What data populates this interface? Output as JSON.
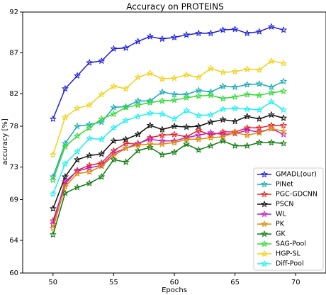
{
  "chart_data": {
    "type": "line",
    "title": "Accuracy on PROTEINS",
    "xlabel": "Epochs",
    "ylabel": "accuracy [%]",
    "xlim": [
      47.5,
      72.5
    ],
    "ylim": [
      60,
      92
    ],
    "xticks": [
      50,
      55,
      60,
      65,
      70
    ],
    "yticks": [
      60,
      64,
      69,
      73,
      78,
      82,
      87,
      92
    ],
    "grid": false,
    "legend_position": "lower-right",
    "x": [
      50,
      51,
      52,
      53,
      54,
      55,
      56,
      57,
      58,
      59,
      60,
      61,
      62,
      63,
      64,
      65,
      66,
      67,
      68,
      69
    ],
    "series": [
      {
        "name": "GMADL(our)",
        "color": "#1f1fd6",
        "marker": "star",
        "values": [
          78.9,
          82.6,
          84.2,
          85.8,
          86.0,
          87.5,
          87.6,
          88.4,
          89.0,
          88.7,
          88.9,
          89.2,
          89.4,
          89.4,
          89.8,
          89.9,
          89.4,
          89.6,
          90.2,
          89.8
        ]
      },
      {
        "name": "PiNet",
        "color": "#17a9b5",
        "marker": "star",
        "values": [
          71.8,
          75.9,
          78.0,
          78.2,
          78.5,
          80.3,
          80.4,
          81.1,
          81.1,
          82.2,
          81.9,
          81.9,
          82.4,
          82.2,
          82.9,
          82.8,
          83.1,
          83.2,
          82.8,
          83.5
        ]
      },
      {
        "name": "PGC-GDCNN",
        "color": "#e82121",
        "marker": "star",
        "values": [
          66.4,
          70.9,
          72.6,
          73.2,
          73.5,
          75.0,
          75.9,
          75.8,
          76.6,
          76.9,
          77.0,
          76.7,
          77.5,
          76.9,
          77.3,
          77.3,
          77.8,
          77.8,
          78.1,
          78.1
        ]
      },
      {
        "name": "PSCN",
        "color": "#111111",
        "marker": "star",
        "values": [
          67.9,
          71.8,
          73.9,
          74.4,
          74.6,
          76.2,
          76.4,
          77.0,
          78.1,
          77.6,
          78.0,
          77.9,
          78.0,
          78.5,
          78.8,
          78.6,
          79.2,
          78.9,
          79.4,
          79.0
        ]
      },
      {
        "name": "WL",
        "color": "#c21bc2",
        "marker": "star",
        "values": [
          66.0,
          71.2,
          72.5,
          72.9,
          73.2,
          74.7,
          75.3,
          75.9,
          76.4,
          76.2,
          76.2,
          76.6,
          76.9,
          77.2,
          77.0,
          77.1,
          77.5,
          77.3,
          77.7,
          77.0
        ]
      },
      {
        "name": "PK",
        "color": "#e08a00",
        "marker": "star",
        "values": [
          65.5,
          70.6,
          72.2,
          72.4,
          73.1,
          74.4,
          75.3,
          75.7,
          75.8,
          75.8,
          76.0,
          76.4,
          76.4,
          76.6,
          76.7,
          77.2,
          76.9,
          77.2,
          77.7,
          77.4
        ]
      },
      {
        "name": "GK",
        "color": "#117a11",
        "marker": "star",
        "values": [
          64.7,
          69.8,
          70.5,
          71.0,
          71.8,
          73.9,
          73.6,
          75.0,
          75.4,
          74.5,
          74.8,
          75.8,
          75.1,
          75.6,
          76.2,
          75.6,
          75.6,
          76.0,
          76.0,
          75.9
        ]
      },
      {
        "name": "SAG-Pool",
        "color": "#33d933",
        "marker": "star",
        "values": [
          71.4,
          75.5,
          76.8,
          77.8,
          78.9,
          79.5,
          80.3,
          80.6,
          80.9,
          81.1,
          81.2,
          81.5,
          81.7,
          81.8,
          81.4,
          81.6,
          81.9,
          81.8,
          82.1,
          82.3
        ]
      },
      {
        "name": "HGP-SL",
        "color": "#f0d21c",
        "marker": "star",
        "values": [
          74.5,
          79.1,
          80.2,
          80.6,
          81.9,
          82.9,
          82.6,
          84.0,
          84.5,
          83.8,
          83.9,
          84.3,
          84.0,
          85.1,
          84.6,
          84.7,
          85.0,
          84.9,
          86.0,
          85.7
        ]
      },
      {
        "name": "Diff-Pool",
        "color": "#1ef0f0",
        "marker": "star",
        "values": [
          69.7,
          73.4,
          74.9,
          76.5,
          76.4,
          77.8,
          78.7,
          79.2,
          79.6,
          79.5,
          78.9,
          79.9,
          79.3,
          79.4,
          80.1,
          80.2,
          80.1,
          80.0,
          81.0,
          80.0
        ]
      }
    ]
  }
}
